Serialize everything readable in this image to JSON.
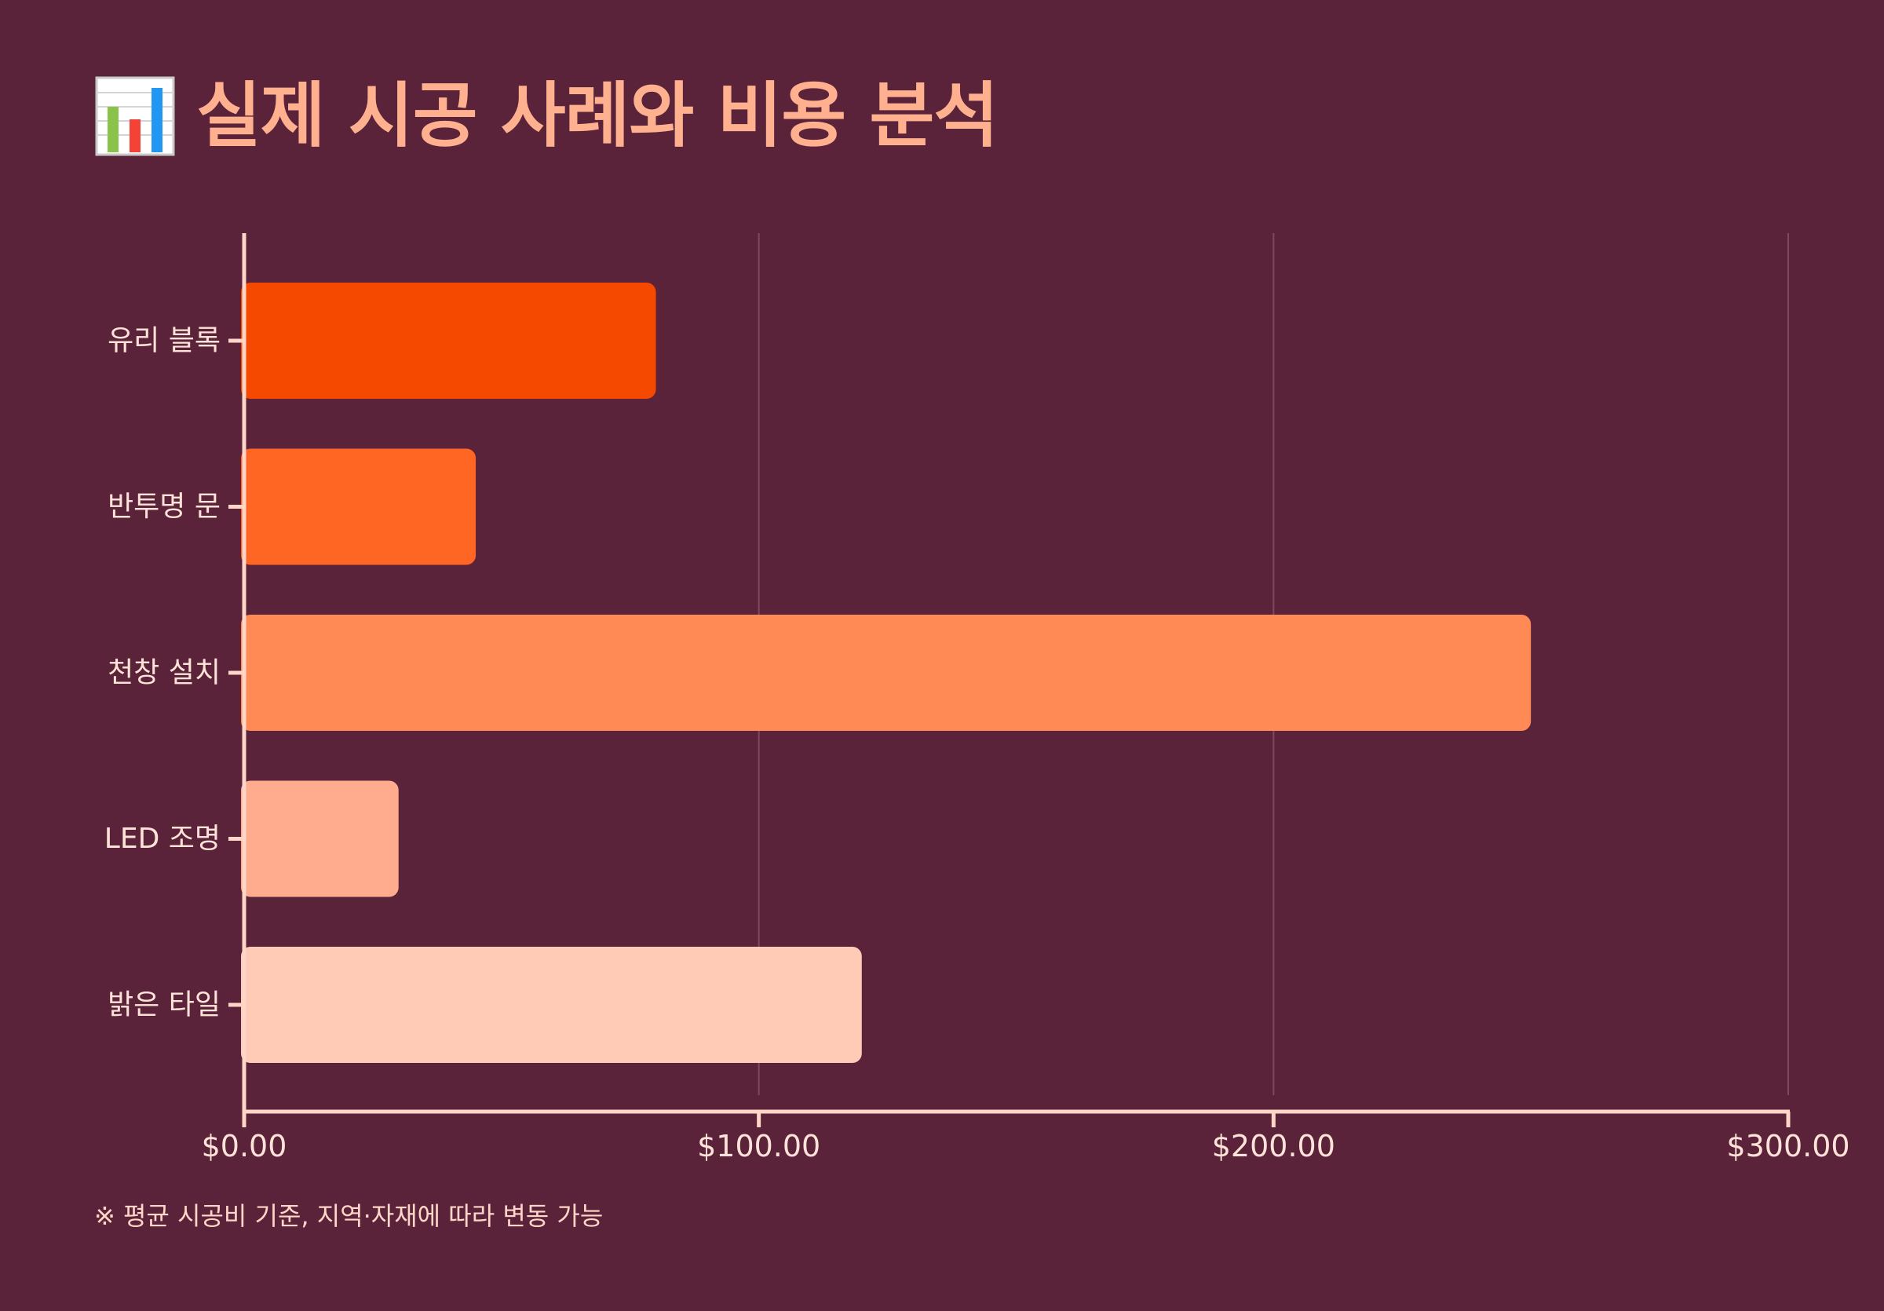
{
  "header": {
    "icon": "bar-chart-emoji-icon",
    "title": "실제 시공 사례와 비용 분석"
  },
  "chart_data": {
    "type": "bar",
    "orientation": "horizontal",
    "categories": [
      "유리 블록",
      "반투명 문",
      "천창 설치",
      "LED 조명",
      "밝은 타일"
    ],
    "values": [
      80,
      45,
      250,
      30,
      120
    ],
    "xlim": [
      0,
      300
    ],
    "x_ticks": [
      0,
      100,
      200,
      300
    ],
    "x_tick_labels": [
      "$0.00",
      "$100.00",
      "$200.00",
      "$300.00"
    ],
    "bar_colors": [
      "#f54900",
      "#ff6624",
      "#ff8a56",
      "#ffab8e",
      "#ffcab6"
    ],
    "grid": true,
    "xlabel": "",
    "ylabel": ""
  },
  "footnote": "※ 평균 시공비 기준, 지역·자재에 따라 변동 가능",
  "colors": {
    "background": "#5b233a",
    "title": "#ffb08e",
    "axis": "#ffd6c8",
    "gridline": "#7d4a5d",
    "label": "#ffe3d8"
  }
}
